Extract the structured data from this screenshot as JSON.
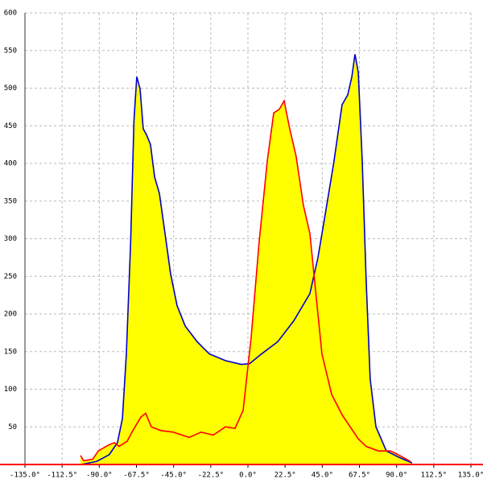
{
  "chart_data": {
    "type": "area",
    "xlim": [
      -135,
      135
    ],
    "ylim": [
      0,
      600
    ],
    "xticks": [
      {
        "value": -135,
        "label": "-135.0°"
      },
      {
        "value": -112.5,
        "label": "-112.5°"
      },
      {
        "value": -90,
        "label": "-90.0°"
      },
      {
        "value": -67.5,
        "label": "-67.5°"
      },
      {
        "value": -45,
        "label": "-45.0°"
      },
      {
        "value": -22.5,
        "label": "-22.5°"
      },
      {
        "value": 0,
        "label": "0.0°"
      },
      {
        "value": 22.5,
        "label": "22.5°"
      },
      {
        "value": 45,
        "label": "45.0°"
      },
      {
        "value": 67.5,
        "label": "67.5°"
      },
      {
        "value": 90,
        "label": "90.0°"
      },
      {
        "value": 112.5,
        "label": "112.5°"
      },
      {
        "value": 135,
        "label": "135.0°"
      }
    ],
    "yticks": [
      50,
      100,
      150,
      200,
      250,
      300,
      350,
      400,
      450,
      500,
      550,
      600
    ],
    "grid": true,
    "fill_color": "#ffff00",
    "x_axis_color": "#ff0000",
    "series": [
      {
        "color": "#0000cc",
        "x": [
          -101,
          -91.6,
          -84,
          -79,
          -76,
          -73.6,
          -71,
          -69,
          -67.3,
          -65.3,
          -63.4,
          -61.4,
          -59,
          -56.5,
          -53.6,
          -50.2,
          -46.8,
          -42.9,
          -38,
          -30.7,
          -23.4,
          -13.6,
          -3.9,
          1,
          8.3,
          18,
          27.8,
          37.5,
          42.4,
          47.3,
          52.1,
          57,
          60.4,
          62.9,
          64.8,
          66.8,
          69.2,
          71.6,
          74,
          77.5,
          83.8,
          91,
          99.4
        ],
        "values": [
          0,
          4,
          13,
          29,
          61,
          147,
          296,
          457,
          515,
          499,
          446,
          438,
          425,
          382,
          360,
          307,
          253,
          211,
          184,
          163,
          147,
          138,
          133,
          134,
          147,
          163,
          191,
          227,
          275,
          339,
          403,
          478,
          491,
          515,
          545,
          521,
          403,
          243,
          114,
          50,
          18,
          10,
          2
        ]
      },
      {
        "color": "#ff0000",
        "x": [
          -101.4,
          -99.4,
          -94,
          -90.6,
          -84.3,
          -80.9,
          -78,
          -73.1,
          -69.7,
          -64.8,
          -61.9,
          -58.5,
          -52.6,
          -45.3,
          -35.6,
          -28.3,
          -21,
          -13.6,
          -7.8,
          -2.9,
          1.9,
          6.8,
          11.7,
          15.6,
          19,
          21.9,
          25.3,
          29.2,
          33.6,
          37.5,
          40.9,
          44.8,
          50.7,
          57,
          61.9,
          66.8,
          71.6,
          78.9,
          86.3,
          91,
          98.4
        ],
        "values": [
          12,
          5,
          7,
          18,
          26,
          29,
          24,
          31,
          45,
          63,
          68,
          50,
          45,
          43,
          36,
          43,
          39,
          50,
          48,
          72,
          168,
          296,
          403,
          467,
          472,
          483,
          446,
          409,
          344,
          307,
          232,
          147,
          93,
          66,
          50,
          34,
          24,
          18,
          18,
          13,
          4
        ]
      }
    ]
  }
}
